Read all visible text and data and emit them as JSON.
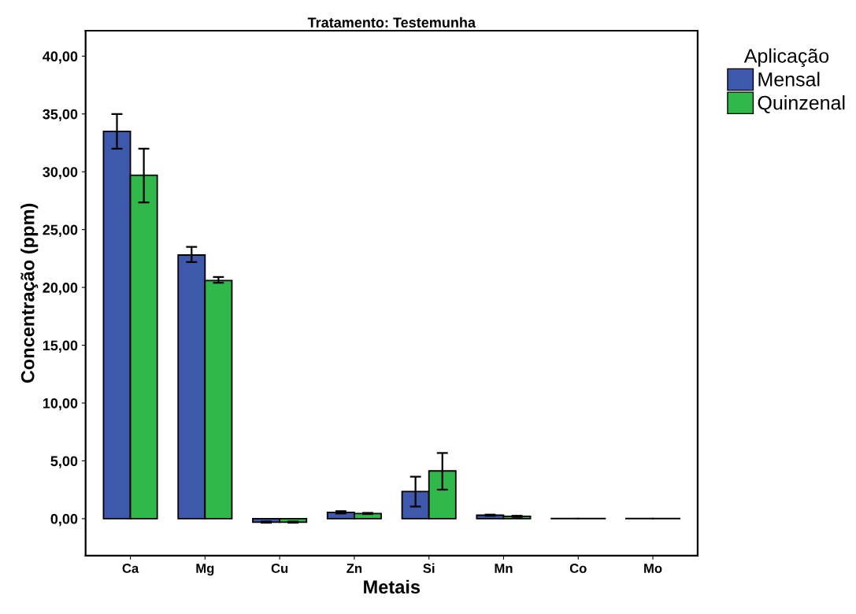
{
  "chart_data": {
    "type": "bar",
    "title": "Tratamento: Testemunha",
    "xlabel": "Metais",
    "ylabel": "Concentração (ppm)",
    "legend_title": "Aplicação",
    "categories": [
      "Ca",
      "Mg",
      "Cu",
      "Zn",
      "Si",
      "Mn",
      "Co",
      "Mo"
    ],
    "series": [
      {
        "name": "Mensal",
        "color": "#3e58ac",
        "values": [
          33.5,
          22.8,
          -0.3,
          0.54,
          2.35,
          0.3,
          0.02,
          0.01
        ],
        "errors": [
          [
            32.0,
            35.0
          ],
          [
            22.2,
            23.5
          ],
          [
            -0.35,
            -0.25
          ],
          [
            0.45,
            0.65
          ],
          [
            1.05,
            3.63
          ],
          [
            0.25,
            0.35
          ],
          null,
          null
        ]
      },
      {
        "name": "Quinzenal",
        "color": "#30b84a",
        "values": [
          29.7,
          20.6,
          -0.3,
          0.45,
          4.13,
          0.2,
          0.01,
          0.01
        ],
        "errors": [
          [
            27.35,
            32.0
          ],
          [
            20.4,
            20.9
          ],
          [
            -0.35,
            -0.25
          ],
          [
            0.4,
            0.5
          ],
          [
            2.51,
            5.68
          ],
          [
            0.15,
            0.25
          ],
          null,
          null
        ]
      }
    ],
    "ylim": [
      -3.2,
      42.2
    ],
    "yticks": [
      {
        "value": 0,
        "label": "0,00"
      },
      {
        "value": 5,
        "label": "5,00"
      },
      {
        "value": 10,
        "label": "10,00"
      },
      {
        "value": 15,
        "label": "15,00"
      },
      {
        "value": 20,
        "label": "20,00"
      },
      {
        "value": 25,
        "label": "25,00"
      },
      {
        "value": 30,
        "label": "30,00"
      },
      {
        "value": 35,
        "label": "35,00"
      },
      {
        "value": 40,
        "label": "40,00"
      }
    ],
    "grid": false,
    "legend": "right"
  }
}
